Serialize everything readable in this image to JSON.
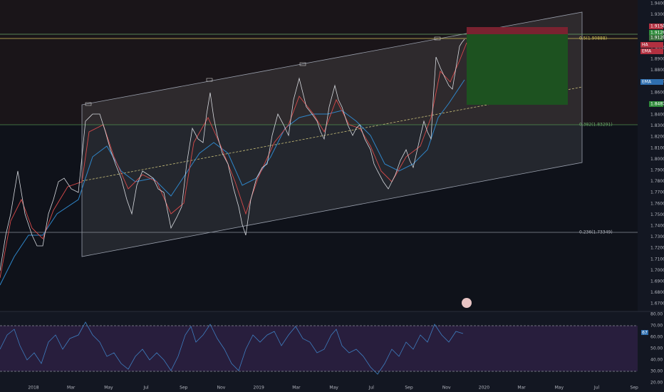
{
  "price_axis": {
    "labels": [
      "1.9400",
      "1.9300",
      "1.9200",
      "1.9100",
      "1.9000",
      "1.8900",
      "1.8800",
      "1.8700",
      "1.8600",
      "1.8500",
      "1.8400",
      "1.8300",
      "1.8200",
      "1.8100",
      "1.8000",
      "1.7900",
      "1.7800",
      "1.7700",
      "1.7600",
      "1.7500",
      "1.7400",
      "1.7300",
      "1.7200",
      "1.7100",
      "1.7000",
      "1.6900",
      "1.6800",
      "1.6700"
    ]
  },
  "badges": [
    {
      "label": "1.9150"
    },
    {
      "label": "1.91268"
    },
    {
      "label": "1.91209"
    },
    {
      "label": "HA"
    },
    {
      "label": "EMA"
    },
    {
      "label": "EMA"
    },
    {
      "label": "1.84879"
    }
  ],
  "fib_levels": [
    {
      "label": "0.5(1.90888)"
    },
    {
      "label": "0.382(1.83291)"
    },
    {
      "label": "0.236(1.73349)"
    }
  ],
  "rsi_axis": {
    "labels": [
      "80.00",
      "70.00",
      "60.00",
      "50.00",
      "40.00",
      "30.00",
      "20.00"
    ]
  },
  "rsi_badge": "67",
  "time_axis": {
    "labels": [
      "2018",
      "Mar",
      "May",
      "Jul",
      "Sep",
      "Nov",
      "2019",
      "Mar",
      "May",
      "Jul",
      "Sep",
      "Nov",
      "2020",
      "Mar",
      "May",
      "Jul",
      "Sep"
    ]
  }
}
